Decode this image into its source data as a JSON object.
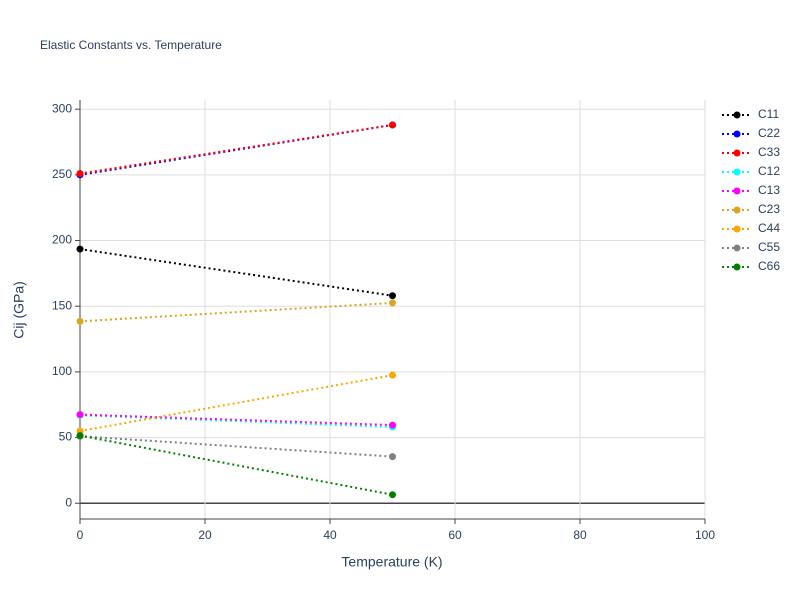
{
  "chart_data": {
    "type": "line",
    "title": "Elastic Constants vs. Temperature",
    "x_label": "Temperature (K)",
    "y_label": "Cij (GPa)",
    "x": [
      0,
      50
    ],
    "series": [
      {
        "name": "C11",
        "color": "#000000",
        "values": [
          193.5,
          158
        ]
      },
      {
        "name": "C22",
        "color": "#0000ff",
        "values": [
          250,
          288
        ]
      },
      {
        "name": "C33",
        "color": "#ff0000",
        "values": [
          251,
          288
        ]
      },
      {
        "name": "C12",
        "color": "#00ffff",
        "values": [
          67,
          58
        ]
      },
      {
        "name": "C13",
        "color": "#ff00ff",
        "values": [
          67.5,
          59.5
        ]
      },
      {
        "name": "C23",
        "color": "#daa520",
        "values": [
          138.5,
          152.5
        ]
      },
      {
        "name": "C44",
        "color": "#ffa500",
        "values": [
          55,
          97.5
        ]
      },
      {
        "name": "C55",
        "color": "#808080",
        "values": [
          51,
          35.5
        ]
      },
      {
        "name": "C66",
        "color": "#008000",
        "values": [
          51.5,
          6.5
        ]
      }
    ],
    "xlim": [
      0,
      100
    ],
    "xticks": [
      0,
      20,
      40,
      60,
      80,
      100
    ],
    "ylim": [
      -12,
      307
    ],
    "yticks": [
      0,
      50,
      100,
      150,
      200,
      250,
      300
    ],
    "grid": true,
    "legend": "right"
  }
}
